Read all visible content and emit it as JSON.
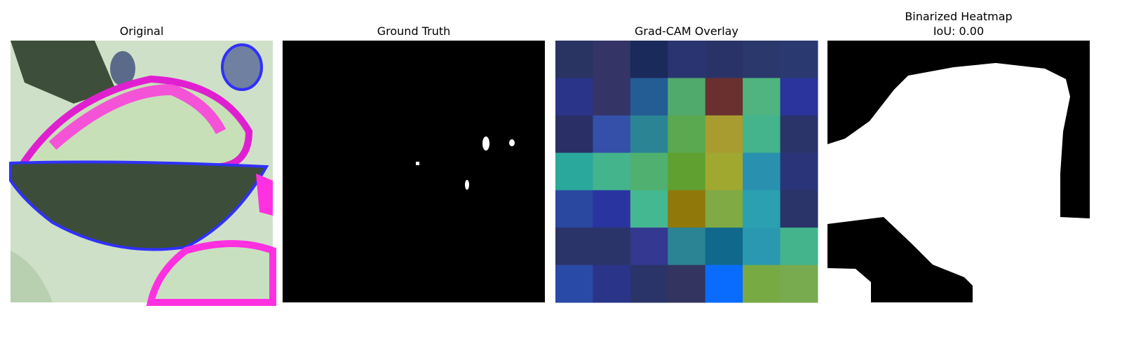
{
  "panels": [
    {
      "title": "Original"
    },
    {
      "title": "Ground Truth"
    },
    {
      "title": "Grad-CAM Overlay",
      "cells": [
        [
          "#2a3463",
          "#343566",
          "#1a2a5a",
          "#2a3470",
          "#2a3368",
          "#2a386c",
          "#2a3a70"
        ],
        [
          "#2a3488",
          "#343566",
          "#245c94",
          "#50aa6c",
          "#6a3030",
          "#50b480",
          "#2a349c"
        ],
        [
          "#2a3066",
          "#3450a8",
          "#2a8494",
          "#5aa850",
          "#a89c30",
          "#44b48c",
          "#2a3468"
        ],
        [
          "#2aa89c",
          "#44b48c",
          "#50b070",
          "#60a030",
          "#a0a830",
          "#2a90b0",
          "#2a3478"
        ],
        [
          "#2a48a0",
          "#2a34a0",
          "#44b890",
          "#90780a",
          "#80aa44",
          "#2aa0b0",
          "#2a3468"
        ],
        [
          "#2a3468",
          "#2a3468",
          "#343890",
          "#2a8494",
          "#10688c",
          "#2a98b0",
          "#44b48c"
        ],
        [
          "#2a4aa8",
          "#2a3488",
          "#2a3468",
          "#343460",
          "#0a6cff",
          "#78aa44",
          "#78aa50"
        ]
      ]
    },
    {
      "title": [
        "Binarized Heatmap",
        "IoU: 0.00"
      ]
    }
  ]
}
